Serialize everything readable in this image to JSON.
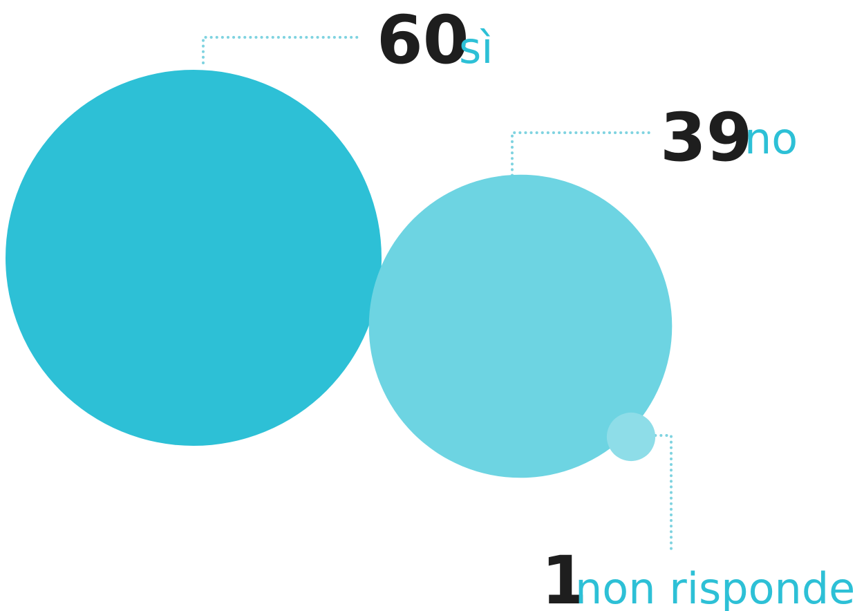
{
  "chart_data": {
    "type": "bubble",
    "title": "",
    "categories": [
      "sì",
      "no",
      "non risponde"
    ],
    "values": [
      60,
      39,
      1
    ],
    "value_labels": [
      "60",
      "39",
      "1"
    ],
    "colors": [
      "#2dc0d6",
      "#6dd4e2",
      "#8edde8"
    ],
    "label_color": "#2dc0d6",
    "value_color": "#1e1e1e",
    "connector_color": "#7fd3e0",
    "connector_style": "dotted"
  }
}
